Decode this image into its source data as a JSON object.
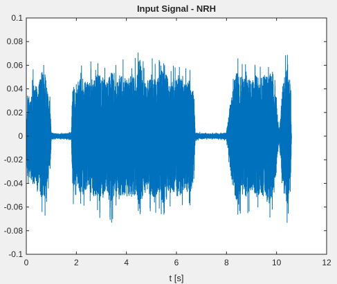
{
  "chart_data": {
    "type": "line",
    "title": "Input Signal - NRH",
    "xlabel": "t [s]",
    "ylabel": "",
    "xlim": [
      0,
      12
    ],
    "ylim": [
      -0.1,
      0.1
    ],
    "xticks": [
      "0",
      "2",
      "4",
      "6",
      "8",
      "10",
      "12"
    ],
    "yticks": [
      "-0.1",
      "-0.08",
      "-0.06",
      "-0.04",
      "-0.02",
      "0",
      "0.02",
      "0.04",
      "0.06",
      "0.08",
      "0.1"
    ],
    "grid": false,
    "series": [
      {
        "name": "",
        "color": "#0072bd",
        "envelope": [
          [
            0.0,
            0.01
          ],
          [
            0.05,
            0.05
          ],
          [
            0.15,
            0.045
          ],
          [
            0.3,
            0.06
          ],
          [
            0.45,
            0.055
          ],
          [
            0.6,
            0.07
          ],
          [
            0.75,
            0.07
          ],
          [
            0.85,
            0.05
          ],
          [
            0.95,
            0.04
          ],
          [
            1.0,
            0.004
          ],
          [
            1.2,
            0.003
          ],
          [
            1.5,
            0.003
          ],
          [
            1.8,
            0.004
          ],
          [
            1.85,
            0.06
          ],
          [
            2.0,
            0.05
          ],
          [
            2.2,
            0.07
          ],
          [
            2.4,
            0.06
          ],
          [
            2.6,
            0.065
          ],
          [
            2.8,
            0.07
          ],
          [
            3.0,
            0.07
          ],
          [
            3.2,
            0.06
          ],
          [
            3.4,
            0.075
          ],
          [
            3.6,
            0.06
          ],
          [
            3.8,
            0.07
          ],
          [
            4.0,
            0.065
          ],
          [
            4.2,
            0.07
          ],
          [
            4.4,
            0.065
          ],
          [
            4.55,
            0.088
          ],
          [
            4.7,
            0.06
          ],
          [
            4.9,
            0.065
          ],
          [
            5.1,
            0.07
          ],
          [
            5.3,
            0.065
          ],
          [
            5.5,
            0.085
          ],
          [
            5.7,
            0.06
          ],
          [
            5.9,
            0.065
          ],
          [
            6.1,
            0.07
          ],
          [
            6.3,
            0.06
          ],
          [
            6.5,
            0.065
          ],
          [
            6.7,
            0.05
          ],
          [
            6.75,
            0.004
          ],
          [
            7.2,
            0.003
          ],
          [
            7.6,
            0.003
          ],
          [
            8.0,
            0.004
          ],
          [
            8.25,
            0.06
          ],
          [
            8.4,
            0.075
          ],
          [
            8.6,
            0.065
          ],
          [
            8.8,
            0.07
          ],
          [
            9.0,
            0.06
          ],
          [
            9.2,
            0.07
          ],
          [
            9.4,
            0.065
          ],
          [
            9.6,
            0.075
          ],
          [
            9.8,
            0.07
          ],
          [
            10.0,
            0.04
          ],
          [
            10.1,
            0.005
          ],
          [
            10.25,
            0.06
          ],
          [
            10.4,
            0.075
          ],
          [
            10.5,
            0.07
          ],
          [
            10.55,
            0.065
          ],
          [
            10.6,
            0.0
          ]
        ]
      }
    ]
  }
}
